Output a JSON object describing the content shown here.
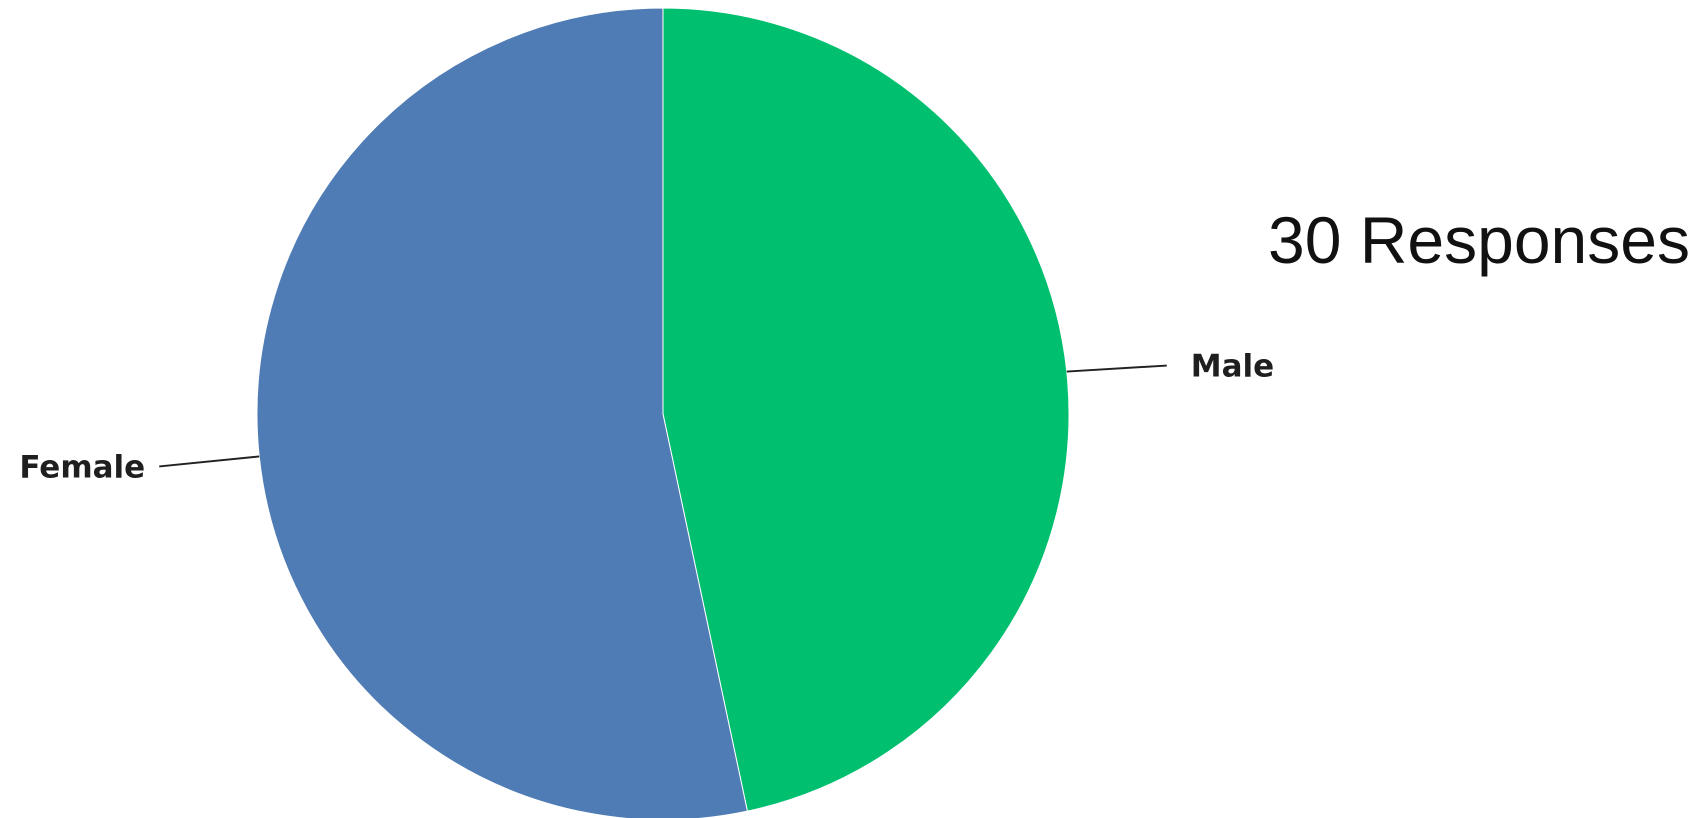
{
  "annotation": {
    "responses_text": "30 Responses"
  },
  "chart_data": {
    "type": "pie",
    "title": "",
    "start_angle": "12 o'clock",
    "direction": "clockwise",
    "total_responses": 30,
    "slices": [
      {
        "label": "Male",
        "value": 14,
        "color": "#00bf6f"
      },
      {
        "label": "Female",
        "value": 16,
        "color": "#507cb5"
      }
    ],
    "legend": "none",
    "labels": "outside with leader lines"
  }
}
